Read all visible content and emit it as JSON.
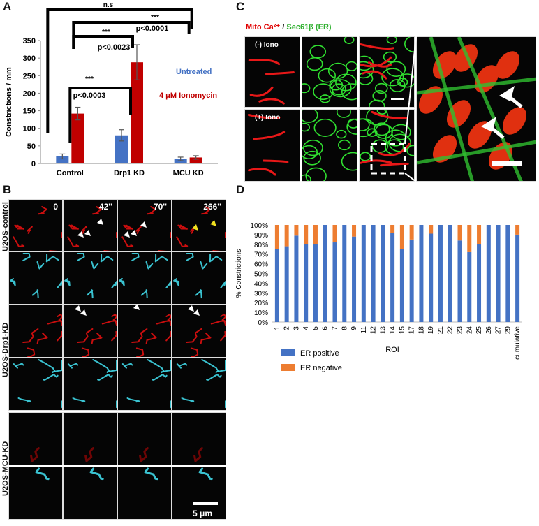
{
  "panels": {
    "a": "A",
    "b": "B",
    "c": "C",
    "d": "D"
  },
  "panel_a": {
    "chart_data": {
      "type": "bar",
      "categories": [
        "Control",
        "Drp1 KD",
        "MCU KD"
      ],
      "ylabel": "Constrictions / mm",
      "ylim": [
        0,
        350
      ],
      "yticks": [
        "0",
        "50",
        "100",
        "150",
        "200",
        "250",
        "300",
        "350"
      ],
      "series": [
        {
          "name": "Untreated",
          "color": "#4472c4",
          "values": [
            20,
            80,
            13
          ],
          "errors": [
            7,
            16,
            5
          ]
        },
        {
          "name": "4 μM Ionomycin",
          "color": "#c00000",
          "values": [
            142,
            288,
            17
          ],
          "errors": [
            18,
            50,
            5
          ]
        }
      ],
      "annotations": [
        {
          "text": "n.s"
        },
        {
          "text": "***"
        },
        {
          "text": "p<0.0001"
        },
        {
          "text": "***"
        },
        {
          "text": "p<0.0023"
        },
        {
          "text": "***"
        },
        {
          "text": "p<0.0003"
        }
      ],
      "legend": [
        "Untreated",
        "4 μM Ionomycin"
      ],
      "legend_placement": "right"
    }
  },
  "panel_b": {
    "time_labels": [
      "0",
      "42''",
      "70''",
      "266''"
    ],
    "row_labels": [
      "U2OS-control",
      "U2OS-Drp1-KD",
      "U2OS-MCU-KD"
    ],
    "scalebar": "5 μm"
  },
  "panel_c": {
    "title_red": "Mito Ca²⁺",
    "title_sep": " / ",
    "title_green": "Sec61β (ER)",
    "label_minus": "(-) Iono",
    "label_plus": "(+) Iono"
  },
  "panel_d": {
    "chart_data": {
      "type": "bar",
      "stacked": true,
      "categories": [
        "1",
        "2",
        "3",
        "4",
        "5",
        "6",
        "7",
        "8",
        "9",
        "11",
        "12",
        "13",
        "14",
        "15",
        "17",
        "18",
        "19",
        "21",
        "22",
        "23",
        "24",
        "25",
        "26",
        "27",
        "29",
        "cumulative"
      ],
      "xlabel": "ROI",
      "ylabel": "% Constrictions",
      "ylim": [
        0,
        100
      ],
      "yticks": [
        "0%",
        "10%",
        "20%",
        "30%",
        "40%",
        "50%",
        "60%",
        "70%",
        "80%",
        "90%",
        "100%"
      ],
      "series": [
        {
          "name": "ER positive",
          "color": "#4472c4",
          "values": [
            75,
            78,
            89,
            80,
            80,
            100,
            82,
            100,
            88,
            100,
            100,
            100,
            92,
            75,
            85,
            100,
            91,
            100,
            100,
            84,
            72,
            80,
            100,
            100,
            100,
            90
          ]
        },
        {
          "name": "ER negative",
          "color": "#ed7d31",
          "values": [
            25,
            22,
            11,
            20,
            20,
            0,
            18,
            0,
            12,
            0,
            0,
            0,
            8,
            25,
            15,
            0,
            9,
            0,
            0,
            16,
            28,
            20,
            0,
            0,
            0,
            10
          ]
        }
      ],
      "legend": [
        "ER positive",
        "ER negative"
      ],
      "legend_placement": "bottom-left"
    }
  }
}
